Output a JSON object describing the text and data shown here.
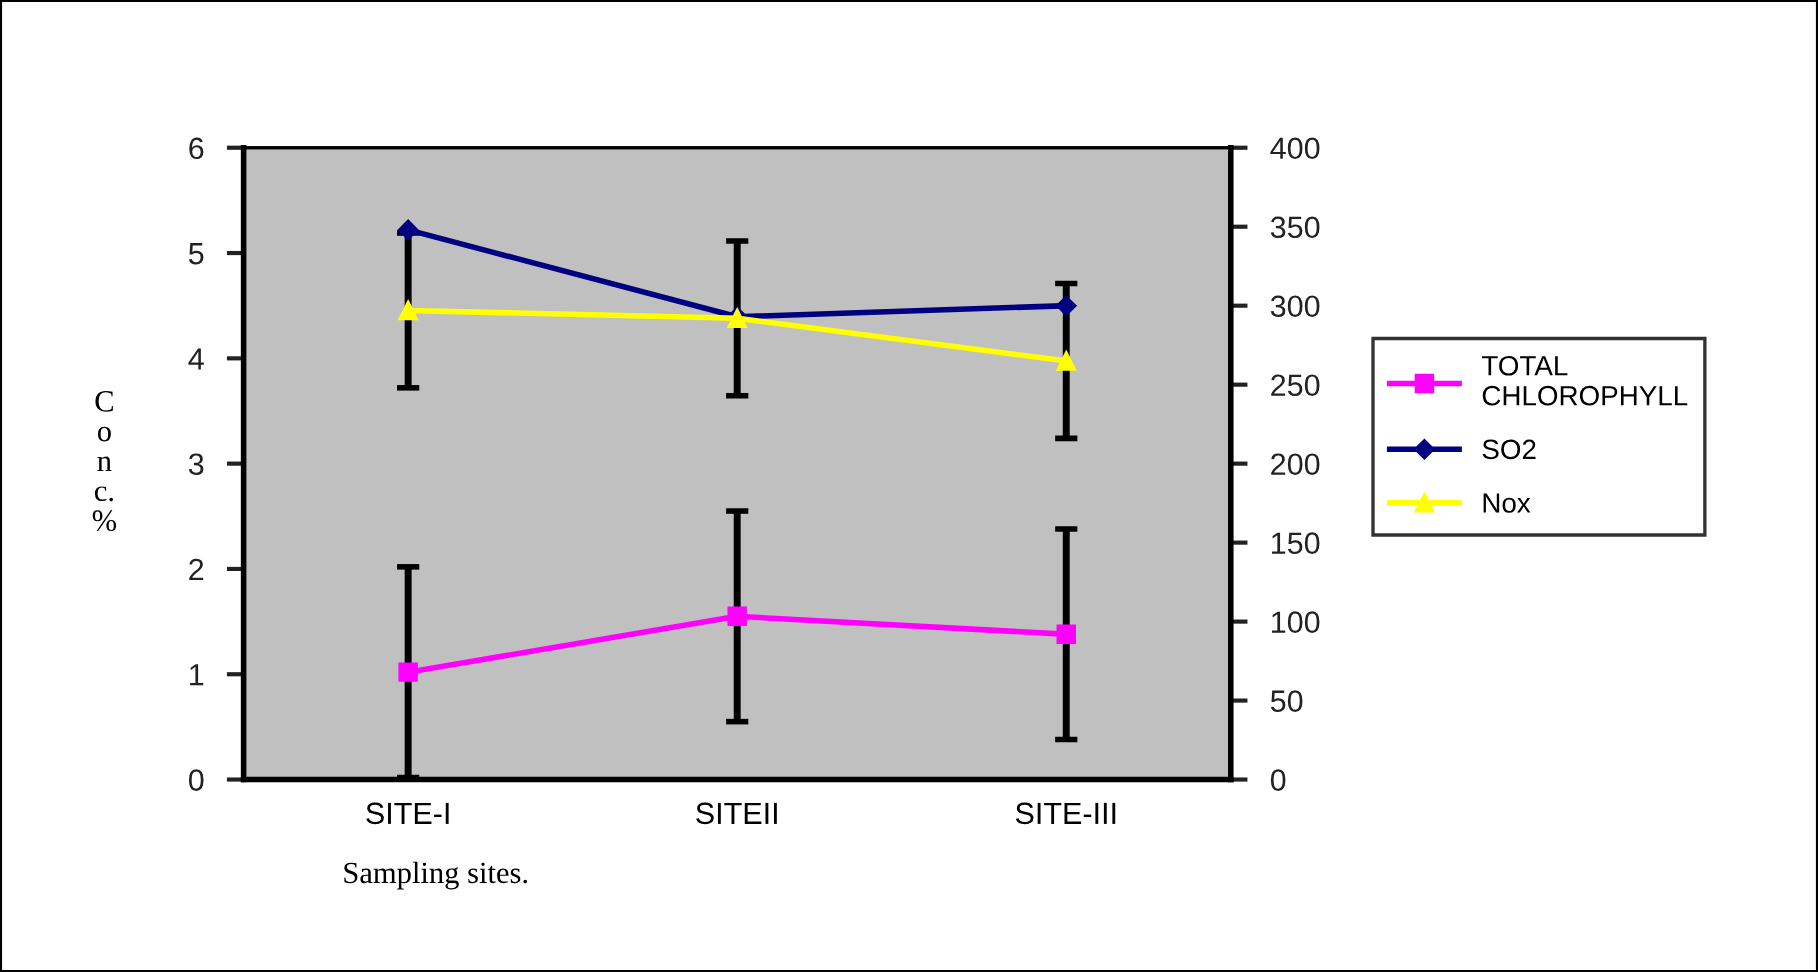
{
  "chart_data": {
    "type": "line",
    "xlabel": "Sampling sites.",
    "ylabel": "Conc. %",
    "categories": [
      "SITE-I",
      "SITEII",
      "SITE-III"
    ],
    "series": [
      {
        "name": "TOTAL CHLOROPHYLL",
        "color": "#ff00ff",
        "marker": "square",
        "values": [
          1.02,
          1.55,
          1.38
        ],
        "errors": [
          1.0,
          1.0,
          1.0
        ]
      },
      {
        "name": "SO2",
        "color": "#000080",
        "marker": "diamond",
        "axis": "y2",
        "values": [
          348,
          293,
          300
        ]
      },
      {
        "name": "Nox",
        "color": "#ffff00",
        "marker": "triangle",
        "axis": "y2",
        "values": [
          297,
          292,
          265
        ],
        "errors": [
          49,
          49,
          49
        ]
      }
    ],
    "ylim": [
      0,
      6
    ],
    "yticks": [
      0,
      1,
      2,
      3,
      4,
      5,
      6
    ],
    "y2lim": [
      0,
      400
    ],
    "y2ticks": [
      0,
      50,
      100,
      150,
      200,
      250,
      300,
      350,
      400
    ],
    "grid": false,
    "legend": "right"
  }
}
